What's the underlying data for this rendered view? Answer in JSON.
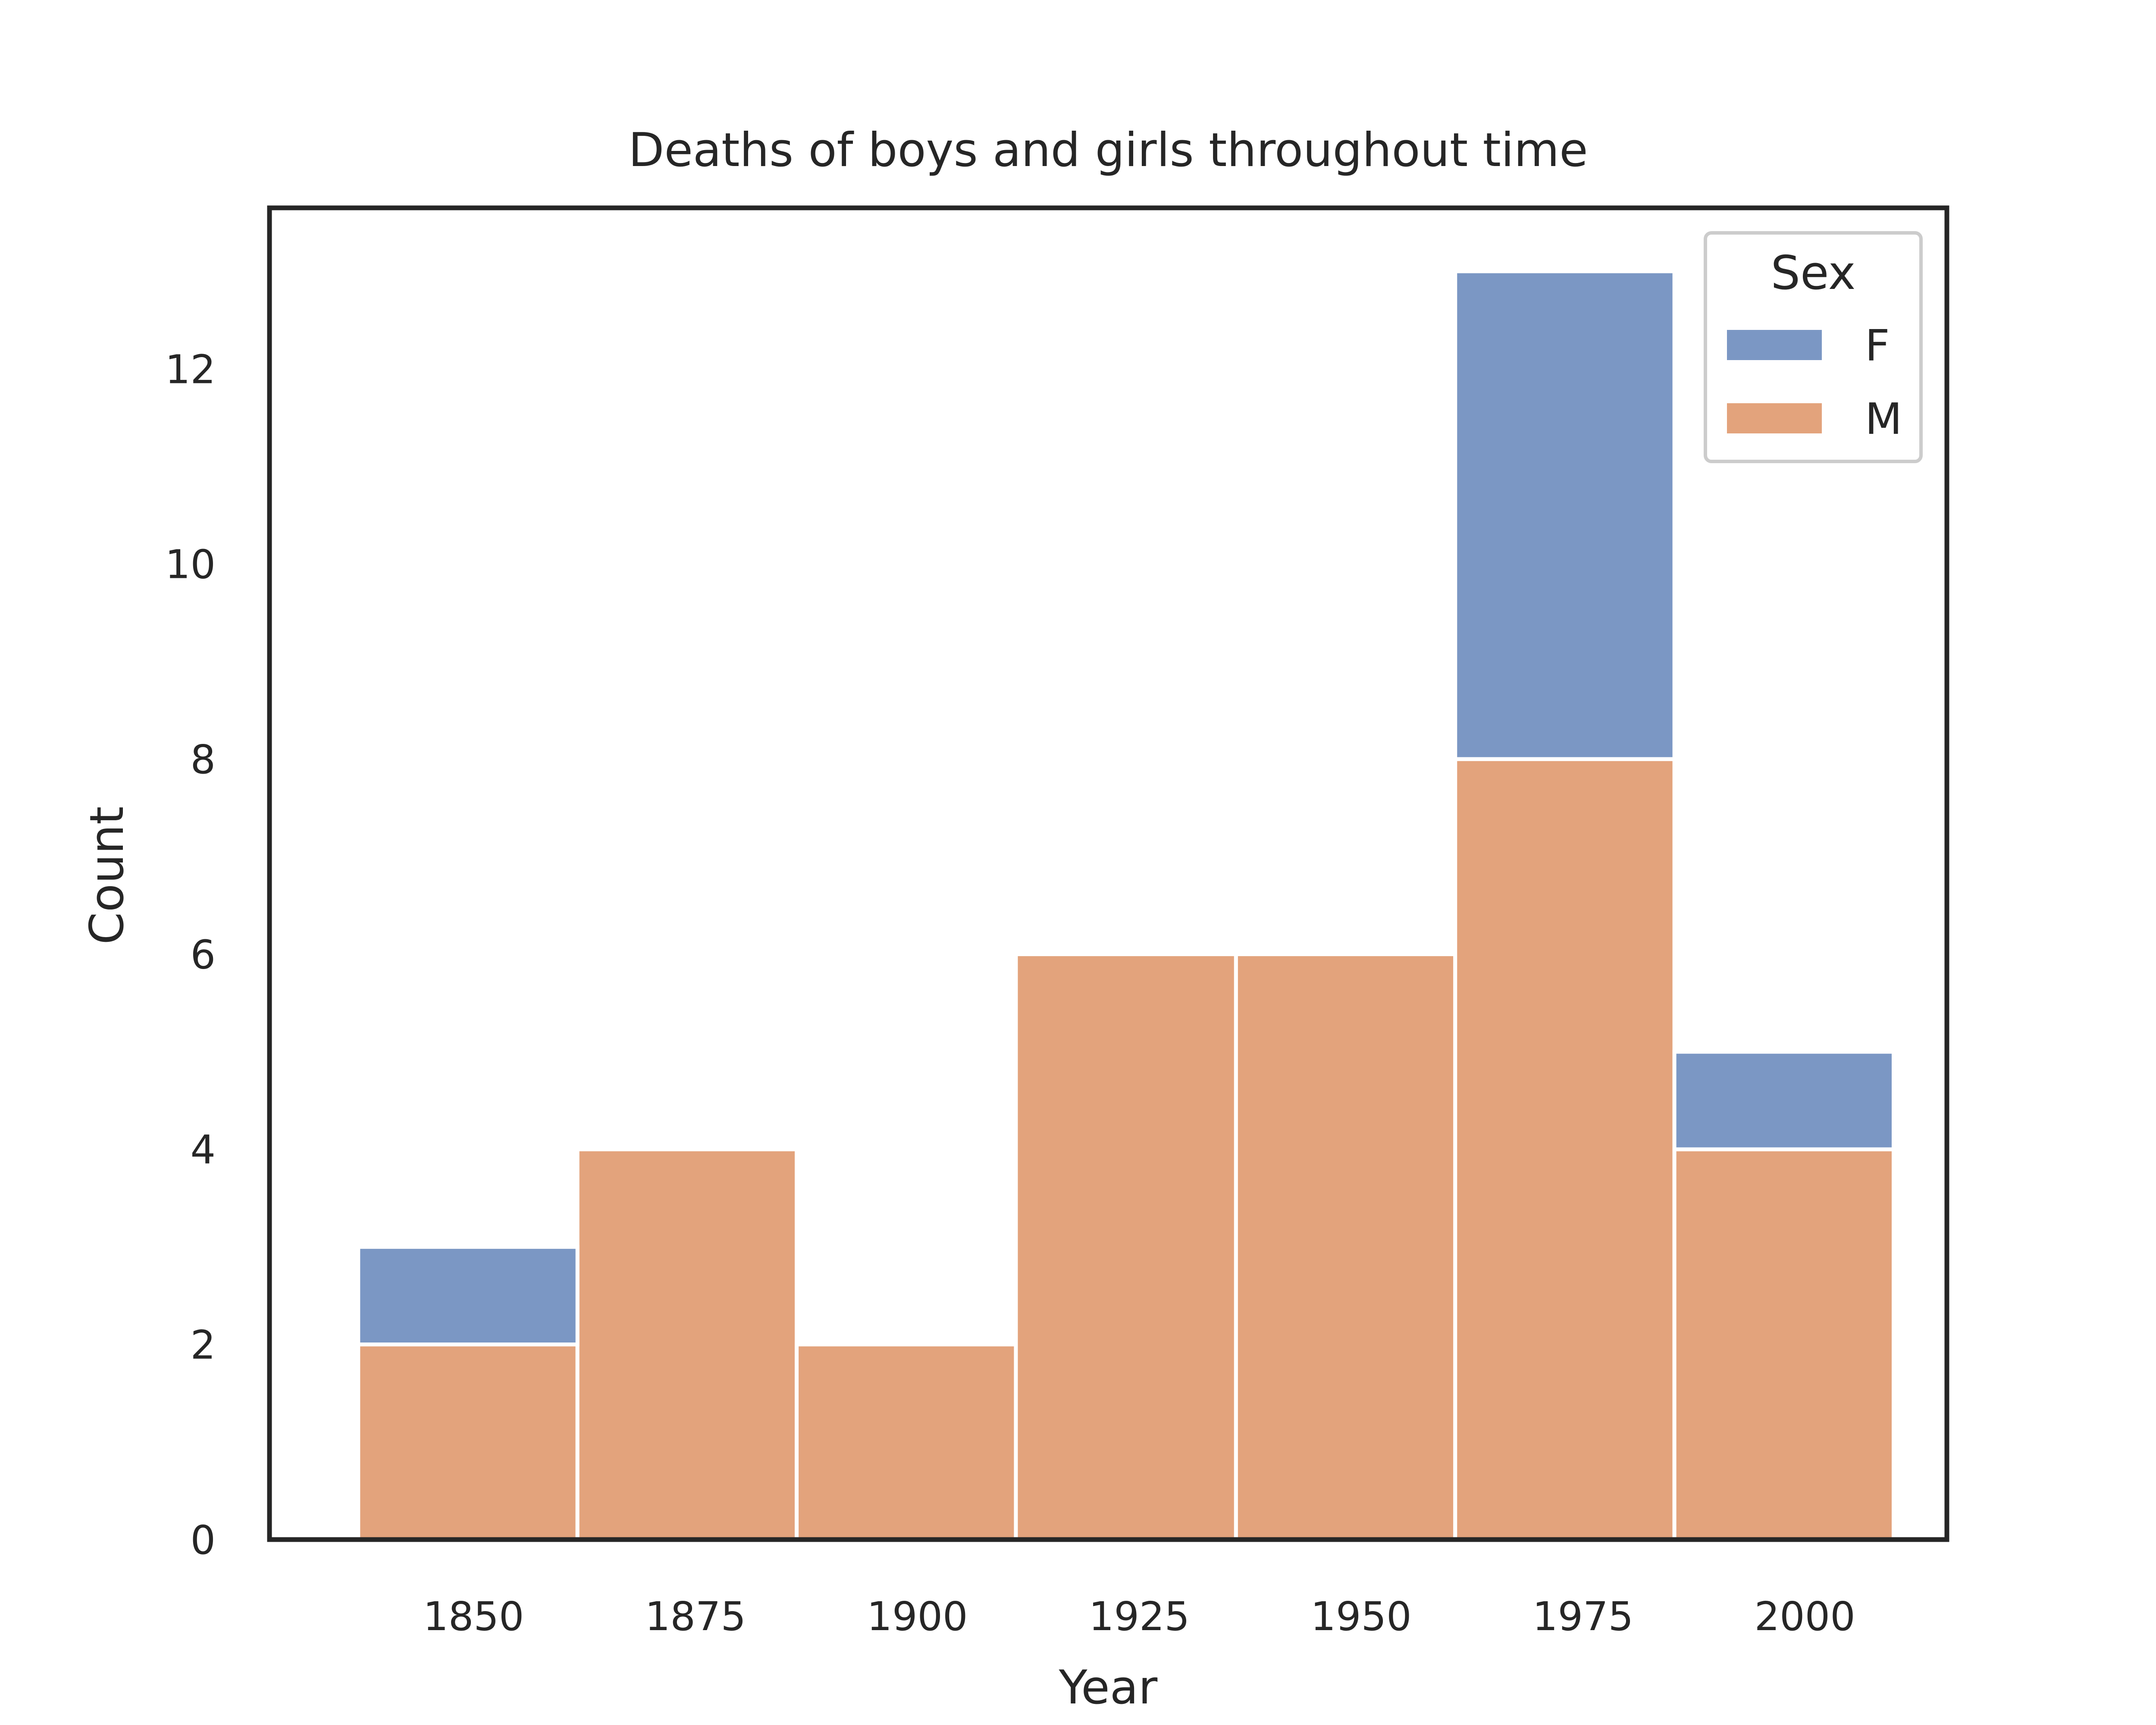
{
  "chart_data": {
    "type": "bar",
    "title": "Deaths of boys and girls throughout time",
    "xlabel": "Year",
    "ylabel": "Count",
    "stacked": true,
    "bin_edges": [
      1837,
      1861.7,
      1886.4,
      1911.1,
      1935.9,
      1960.6,
      1985.3,
      2010
    ],
    "xlim": [
      1827,
      2016
    ],
    "ylim": [
      0,
      13.65
    ],
    "xticks": [
      1850,
      1875,
      1900,
      1925,
      1950,
      1975,
      2000
    ],
    "yticks": [
      0,
      2,
      4,
      6,
      8,
      10,
      12
    ],
    "grid": false,
    "legend": {
      "title": "Sex",
      "placement": "top-right"
    },
    "series": [
      {
        "name": "M",
        "color": "#e3a37c",
        "values": [
          2,
          4,
          2,
          6,
          6,
          8,
          4
        ]
      },
      {
        "name": "F",
        "color": "#7b97c4",
        "values": [
          1,
          0,
          0,
          0,
          0,
          5,
          1
        ]
      }
    ]
  }
}
